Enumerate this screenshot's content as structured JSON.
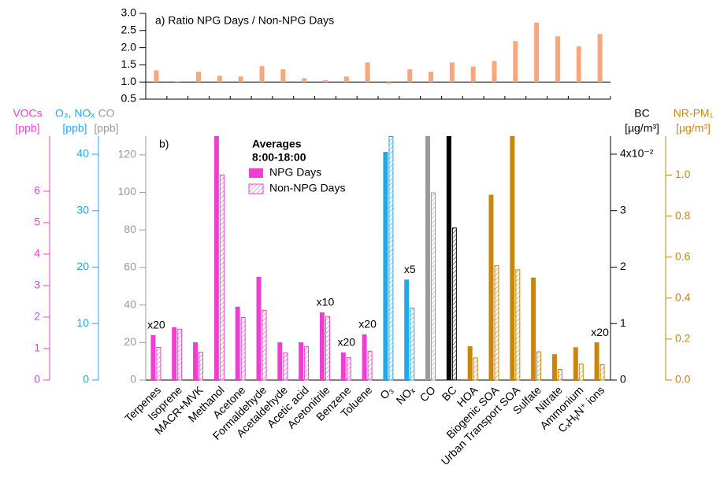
{
  "chart_data": [
    {
      "type": "bar",
      "title": "a) Ratio NPG Days / Non-NPG Days",
      "color": "#f7a77c",
      "bar_base": 1,
      "values": [
        1.34,
        1.02,
        1.3,
        1.18,
        1.16,
        1.46,
        1.37,
        1.11,
        1.05,
        1.16,
        1.57,
        0.95,
        1.37,
        1.3,
        1.57,
        1.45,
        1.61,
        2.19,
        2.73,
        2.33,
        2.04,
        2.4
      ],
      "ylim": [
        0.5,
        3.0
      ],
      "yticks": [
        {
          "value": 0.5,
          "label": "0.5"
        },
        {
          "value": 1,
          "label": "1.0"
        },
        {
          "value": 1.5,
          "label": "1.5"
        },
        {
          "value": 2,
          "label": "2.0"
        },
        {
          "value": 2.5,
          "label": "2.5"
        },
        {
          "value": 3,
          "label": "3.0"
        }
      ]
    },
    {
      "type": "grouped_bar",
      "panel_label": "b)",
      "legend_title": "Averages",
      "legend_subtitle": "8:00-18:00",
      "categories": [
        "Terpenes",
        "Isoprene",
        "MACR+MVK",
        "Methanol",
        "Acetone",
        "Formaldehyde",
        "Acetaldehyde",
        "Acetic acid",
        "Acetonitrile",
        "Benzene",
        "Toluene",
        "O₃",
        "NOₓ",
        "CO",
        "BC",
        "HOA",
        "Biogenic SOA",
        "Urban Transport SOA",
        "Sulfate",
        "Nitrate",
        "Ammonium",
        "CₓHᵧN⁺ ions"
      ],
      "series": [
        {
          "name": "NPG Days",
          "hatched": false,
          "values": [
            1.43,
            1.68,
            1.2,
            7.75,
            2.33,
            3.28,
            1.2,
            1.2,
            2.15,
            0.88,
            1.45,
            40.4,
            17.8,
            130,
            0.0432,
            0.165,
            0.904,
            1.19,
            0.5,
            0.126,
            0.16,
            0.184
          ]
        },
        {
          "name": "Non-NPG Days",
          "hatched": true,
          "values": [
            1.05,
            1.63,
            0.9,
            6.53,
            2.0,
            2.23,
            0.88,
            1.08,
            2.03,
            0.73,
            0.93,
            43.2,
            12.8,
            100,
            0.027,
            0.11,
            0.56,
            0.54,
            0.14,
            0.054,
            0.08,
            0.077
          ]
        }
      ],
      "bar_axis": [
        0,
        0,
        0,
        0,
        0,
        0,
        0,
        0,
        0,
        0,
        0,
        1,
        1,
        2,
        3,
        4,
        4,
        4,
        4,
        4,
        4,
        4
      ],
      "axes": [
        {
          "label": "VOCs",
          "unit": "[ppb]",
          "color": "#ee3fd2",
          "side": "left",
          "ylim": [
            0,
            7.75
          ],
          "yticks": [
            0,
            1,
            2,
            3,
            4,
            5,
            6
          ]
        },
        {
          "label": "O₃, NOₓ",
          "unit": "[ppb]",
          "color": "#1fa9ec",
          "side": "left",
          "ylim": [
            0,
            43.2
          ],
          "yticks": [
            0,
            10,
            20,
            30,
            40
          ]
        },
        {
          "label": "CO",
          "unit": "[ppb]",
          "color": "#9a9a9a",
          "side": "left",
          "ylim": [
            0,
            130
          ],
          "yticks": [
            0,
            20,
            40,
            60,
            80,
            100,
            120
          ]
        },
        {
          "label": "BC",
          "unit": "[µg/m³]",
          "color": "#000000",
          "side": "right",
          "ylim": [
            0,
            0.0432
          ],
          "yticks": [
            0,
            {
              "value": 0.01,
              "label": "1"
            },
            {
              "value": 0.02,
              "label": "2"
            },
            {
              "value": 0.03,
              "label": "3"
            },
            {
              "value": 0.04,
              "label": "4x10⁻²"
            }
          ]
        },
        {
          "label": "NR-PM₁",
          "unit": "[µg/m³]",
          "color": "#c9860c",
          "side": "right",
          "ylim": [
            0,
            1.19
          ],
          "yticks": [
            {
              "value": 0,
              "label": "0.0"
            },
            {
              "value": 0.2,
              "label": "0.2"
            },
            {
              "value": 0.4,
              "label": "0.4"
            },
            {
              "value": 0.6,
              "label": "0.6"
            },
            {
              "value": 0.8,
              "label": "0.8"
            },
            {
              "value": 1,
              "label": "1.0"
            }
          ]
        }
      ],
      "annotations": [
        {
          "text": "x20",
          "category": "Terpenes"
        },
        {
          "text": "x10",
          "category": "Acetonitrile"
        },
        {
          "text": "x20",
          "category": "Benzene"
        },
        {
          "text": "x20",
          "category": "Toluene"
        },
        {
          "text": "x5",
          "category": "NOₓ"
        },
        {
          "text": "x20",
          "category": "CₓHᵧN⁺ ions"
        }
      ]
    }
  ]
}
